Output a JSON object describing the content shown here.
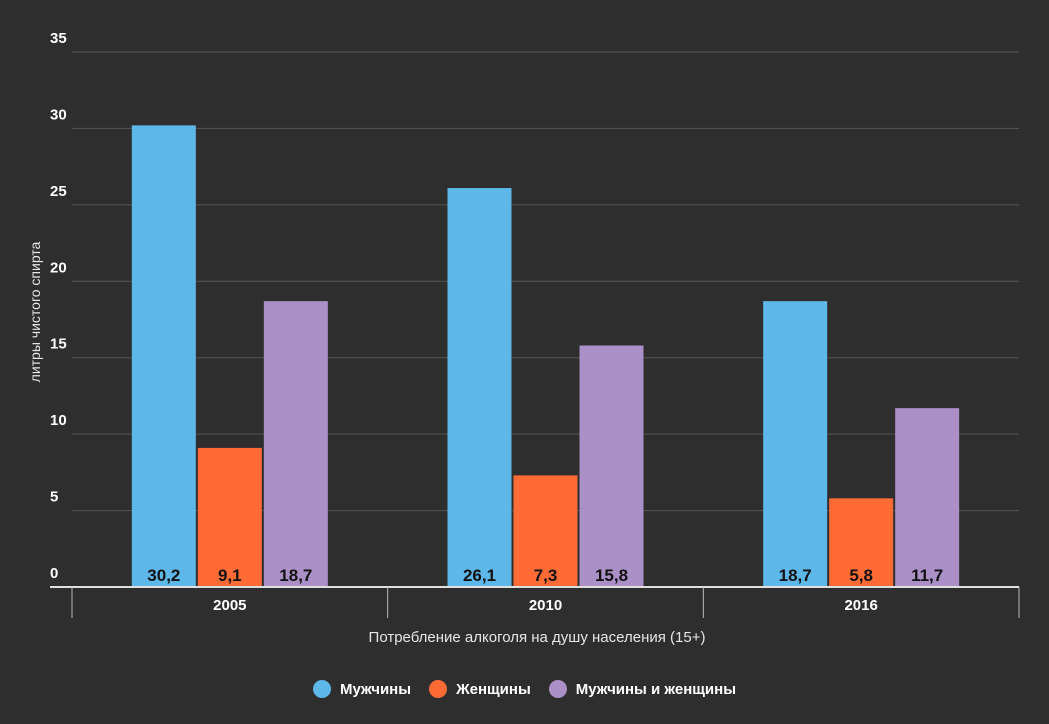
{
  "chart_data": {
    "type": "bar",
    "title": "",
    "xlabel": "Потребление алкоголя на душу населения (15+)",
    "ylabel": "литры чистого спирта",
    "categories": [
      "2005",
      "2010",
      "2016"
    ],
    "ylim": [
      0,
      35
    ],
    "yticks": [
      0,
      5,
      10,
      15,
      20,
      25,
      30,
      35
    ],
    "grid": true,
    "legend_position": "bottom",
    "series": [
      {
        "name": "Мужчины",
        "color": "#5db7e8",
        "values": [
          30.2,
          26.1,
          18.7
        ],
        "labels": [
          "30,2",
          "26,1",
          "18,7"
        ]
      },
      {
        "name": "Женщины",
        "color": "#ff6b35",
        "values": [
          9.1,
          7.3,
          5.8
        ],
        "labels": [
          "9,1",
          "7,3",
          "5,8"
        ]
      },
      {
        "name": "Мужчины и женщины",
        "color": "#ab8fc7",
        "values": [
          18.7,
          15.8,
          11.7
        ],
        "labels": [
          "18,7",
          "15,8",
          "11,7"
        ]
      }
    ]
  }
}
